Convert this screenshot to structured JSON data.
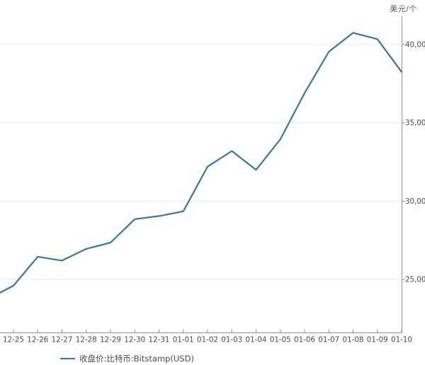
{
  "unit_label": "美元/个",
  "legend": {
    "series_label": "收盘价:比特币:Bitstamp(USD)"
  },
  "colors": {
    "line": "#35789f",
    "grid": "#e9e9e9",
    "axis": "#909090",
    "tick_label": "#4a4a4a",
    "unit_label": "#595959",
    "background": "#ffffff"
  },
  "chart_data": {
    "type": "line",
    "title": "",
    "unit_label": "美元/个",
    "categories": [
      "12-25",
      "12-26",
      "12-27",
      "12-28",
      "12-29",
      "12-30",
      "12-31",
      "01-01",
      "01-02",
      "01-03",
      "01-04",
      "01-05",
      "01-06",
      "01-07",
      "01-08",
      "01-09",
      "01-10"
    ],
    "series": [
      {
        "name": "收盘价:比特币:Bitstamp(USD)",
        "values": [
          24600,
          26450,
          26200,
          26950,
          27350,
          28850,
          29050,
          29350,
          32200,
          33200,
          32000,
          33950,
          36900,
          39550,
          40750,
          40350,
          38250
        ]
      }
    ],
    "left_edge_value": 24150,
    "y_ticks": [
      40000,
      35000,
      30000,
      25000
    ],
    "y_tick_labels": [
      "40,000.",
      "35,000.",
      "30,000.",
      "25,000."
    ],
    "ylim": [
      21600,
      41800
    ],
    "grid": true,
    "legend_position": "bottom-left",
    "y_axis_side": "right"
  }
}
